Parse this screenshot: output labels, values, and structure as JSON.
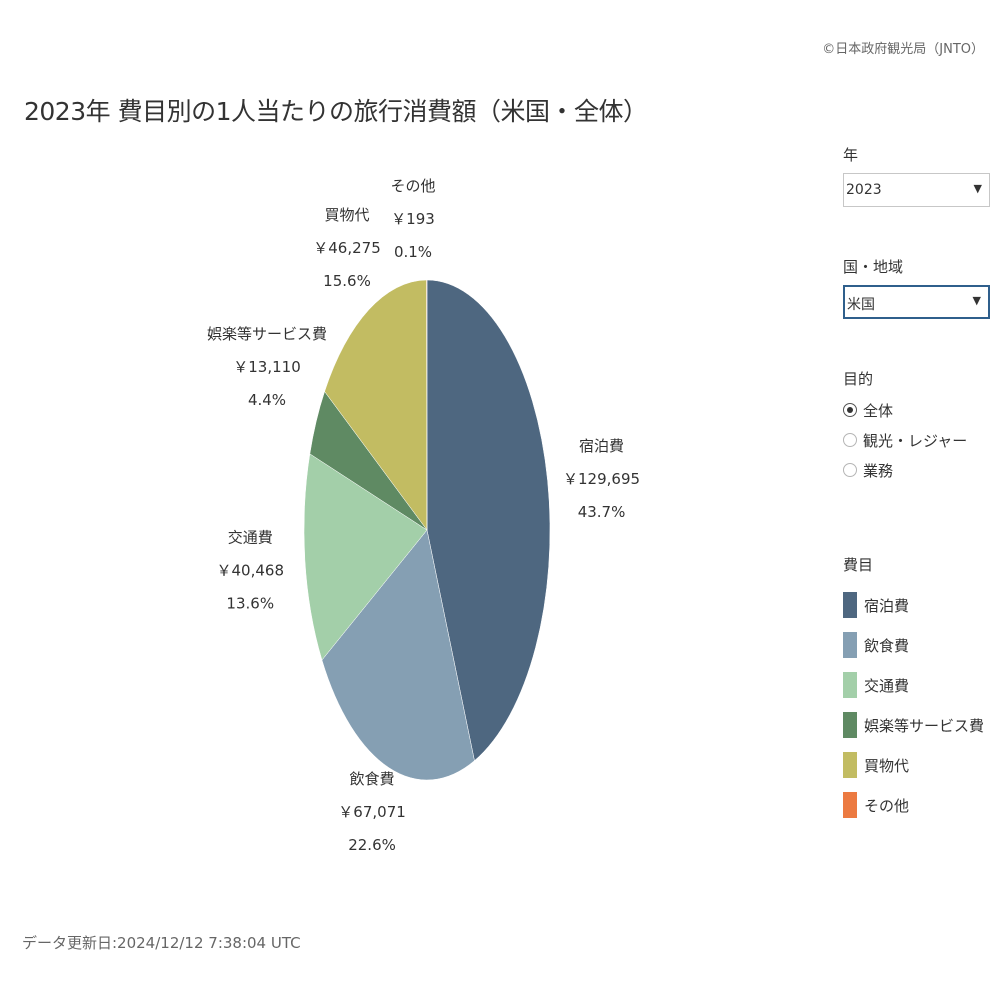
{
  "copyright": "©日本政府観光局（JNTO）",
  "title": "2023年 費目別の1人当たりの旅行消費額（米国・全体）",
  "footer": "データ更新日:2024/12/12 7:38:04 UTC",
  "filters": {
    "year": {
      "label": "年",
      "value": "2023"
    },
    "region": {
      "label": "国・地域",
      "value": "米国"
    },
    "purpose": {
      "label": "目的",
      "options": [
        {
          "label": "全体",
          "checked": true
        },
        {
          "label": "観光・レジャー",
          "checked": false
        },
        {
          "label": "業務",
          "checked": false
        }
      ]
    }
  },
  "legend": {
    "title": "費目",
    "items": [
      {
        "label": "宿泊費",
        "color": "#4e6780"
      },
      {
        "label": "飲食費",
        "color": "#859fb3"
      },
      {
        "label": "交通費",
        "color": "#a3cfa9"
      },
      {
        "label": "娯楽等サービス費",
        "color": "#5f8a63"
      },
      {
        "label": "買物代",
        "color": "#c2bc62"
      },
      {
        "label": "その他",
        "color": "#ec7a41"
      }
    ]
  },
  "chart_data": {
    "type": "pie",
    "title": "2023年 費目別の1人当たりの旅行消費額（米国・全体）",
    "slices": [
      {
        "label": "宿泊費",
        "value": 129695,
        "value_text": "￥129,695",
        "percent_text": "43.7%",
        "color": "#4e6780"
      },
      {
        "label": "飲食費",
        "value": 67071,
        "value_text": "￥67,071",
        "percent_text": "22.6%",
        "color": "#859fb3"
      },
      {
        "label": "交通費",
        "value": 40468,
        "value_text": "￥40,468",
        "percent_text": "13.6%",
        "color": "#a3cfa9"
      },
      {
        "label": "娯楽等サービス費",
        "value": 13110,
        "value_text": "￥13,110",
        "percent_text": "4.4%",
        "color": "#5f8a63"
      },
      {
        "label": "買物代",
        "value": 46275,
        "value_text": "￥46,275",
        "percent_text": "15.6%",
        "color": "#c2bc62"
      },
      {
        "label": "その他",
        "value": 193,
        "value_text": "￥193",
        "percent_text": "0.1%",
        "color": "#ec7a41"
      }
    ]
  }
}
